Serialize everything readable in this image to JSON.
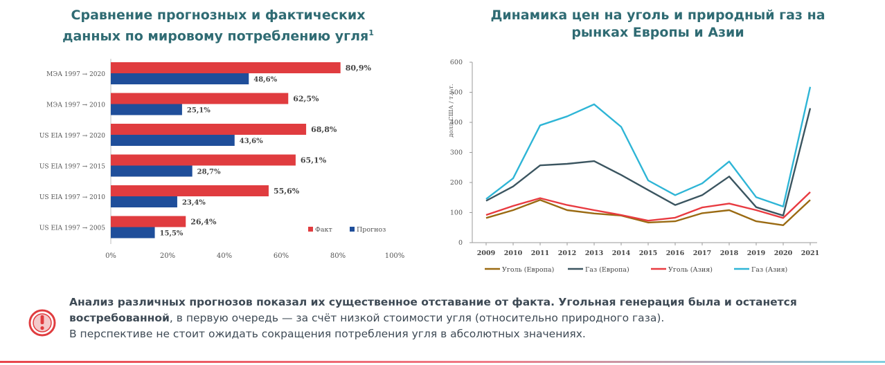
{
  "left_title": {
    "line1": "Сравнение прогнозных и фактических",
    "line2": "данных по мировому потреблению угля",
    "footnote": "1"
  },
  "right_title": {
    "line1": "Динамика цен на уголь и природный газ на",
    "line2": "рынках Европы и Азии"
  },
  "chart_data": [
    {
      "type": "bar",
      "orientation": "horizontal",
      "categories": [
        "МЭА 1997 → 2020",
        "МЭА 1997 → 2010",
        "US EIA 1997 → 2020",
        "US EIA 1997 → 2015",
        "US EIA 1997 → 2010",
        "US EIA 1997 → 2005"
      ],
      "series": [
        {
          "name": "Факт",
          "color": "#e03c3f",
          "values": [
            80.9,
            62.5,
            68.8,
            65.1,
            55.6,
            26.4
          ],
          "labels": [
            "80,9%",
            "62,5%",
            "68,8%",
            "65,1%",
            "55,6%",
            "26,4%"
          ]
        },
        {
          "name": "Прогноз",
          "color": "#1f4e9a",
          "values": [
            48.6,
            25.1,
            43.6,
            28.7,
            23.4,
            15.5
          ],
          "labels": [
            "48,6%",
            "25,1%",
            "43,6%",
            "28,7%",
            "23,4%",
            "15,5%"
          ]
        }
      ],
      "xlim": [
        0,
        100
      ],
      "xticks": [
        "0%",
        "20%",
        "40%",
        "60%",
        "80%",
        "100%"
      ],
      "legend_position": "bottom-right",
      "grid": false
    },
    {
      "type": "line",
      "x": [
        "2009",
        "2010",
        "2011",
        "2012",
        "2013",
        "2014",
        "2015",
        "2016",
        "2017",
        "2018",
        "2019",
        "2020",
        "2021"
      ],
      "ylabel": "долл.США / т.у.т.",
      "ylim": [
        0,
        600
      ],
      "yticks": [
        "0",
        "100",
        "200",
        "300",
        "400",
        "500",
        "600"
      ],
      "series": [
        {
          "name": "Уголь (Европа)",
          "color": "#9a6a12",
          "values": [
            82,
            108,
            142,
            108,
            97,
            90,
            67,
            71,
            98,
            108,
            71,
            58,
            142
          ]
        },
        {
          "name": "Газ (Европа)",
          "color": "#3b5560",
          "values": [
            139,
            187,
            257,
            262,
            271,
            225,
            175,
            125,
            158,
            220,
            118,
            90,
            447
          ]
        },
        {
          "name": "Уголь (Азия)",
          "color": "#e83a40",
          "values": [
            92,
            122,
            148,
            125,
            108,
            92,
            73,
            83,
            117,
            130,
            108,
            82,
            168
          ]
        },
        {
          "name": "Газ (Азия)",
          "color": "#2eb5d6",
          "values": [
            145,
            214,
            390,
            420,
            460,
            385,
            207,
            158,
            197,
            270,
            151,
            120,
            518
          ]
        }
      ],
      "legend_position": "bottom",
      "grid": false
    }
  ],
  "note": {
    "bold1": "Анализ различных прогнозов показал их существенное отставание от факта. Угольная генерация была и останется востребованной",
    "normal1": ", в первую очередь — за счёт низкой стоимости угля (относительно природного газа).",
    "normal2": "В перспективе не стоит ожидать сокращения потребления угля в абсолютных значениях."
  },
  "icons": {
    "warning": "exclamation-circle-icon"
  }
}
